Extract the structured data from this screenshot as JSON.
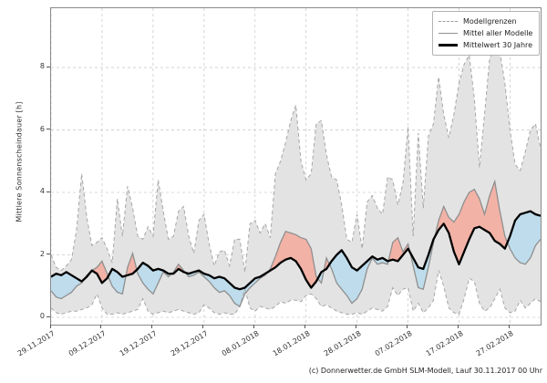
{
  "chart_data": {
    "type": "area",
    "title": "",
    "xlabel": "",
    "ylabel": "Mittlere Sonnenscheindauer [h]",
    "ylim": [
      0,
      9.9
    ],
    "y_ticks": [
      0,
      2,
      4,
      6,
      8
    ],
    "x_range_days": [
      0,
      96
    ],
    "x_ticks": [
      {
        "day": 0,
        "label": "29.11.2017"
      },
      {
        "day": 10,
        "label": "09.12.2017"
      },
      {
        "day": 20,
        "label": "19.12.2017"
      },
      {
        "day": 30,
        "label": "29.12.2017"
      },
      {
        "day": 40,
        "label": "08.01.2018"
      },
      {
        "day": 50,
        "label": "18.01.2018"
      },
      {
        "day": 60,
        "label": "28.01.2018"
      },
      {
        "day": 70,
        "label": "07.02.2018"
      },
      {
        "day": 80,
        "label": "17.02.2018"
      },
      {
        "day": 90,
        "label": "27.02.2018"
      }
    ],
    "grid": true,
    "legend_position": "top-right",
    "legend": [
      "Modellgrenzen",
      "Mittel aller Modelle",
      "Mittelwert 30 Jahre"
    ],
    "series": [
      {
        "name": "Modellgrenzen (oberes Limit)",
        "style": "dashed-bound",
        "values": [
          2.0,
          1.6,
          1.5,
          1.65,
          1.85,
          2.8,
          4.6,
          3.2,
          2.3,
          2.4,
          2.55,
          2.2,
          1.75,
          3.8,
          2.6,
          4.2,
          3.5,
          2.6,
          2.5,
          2.9,
          2.6,
          4.4,
          3.4,
          2.5,
          2.6,
          3.4,
          3.55,
          2.6,
          2.05,
          3.1,
          3.3,
          2.35,
          1.65,
          2.1,
          2.15,
          1.65,
          2.5,
          2.5,
          1.45,
          3.0,
          3.1,
          2.7,
          3.0,
          2.55,
          4.6,
          5.0,
          5.6,
          6.3,
          6.8,
          5.0,
          4.4,
          4.6,
          6.2,
          6.3,
          5.2,
          4.5,
          4.4,
          3.6,
          2.5,
          2.4,
          3.3,
          2.2,
          3.7,
          3.9,
          3.5,
          3.3,
          4.5,
          4.4,
          3.6,
          4.3,
          6.1,
          2.6,
          5.9,
          3.5,
          5.8,
          6.2,
          7.7,
          6.5,
          5.75,
          6.5,
          7.5,
          8.1,
          8.4,
          7.0,
          4.8,
          6.5,
          8.3,
          8.55,
          8.5,
          7.5,
          6.0,
          4.9,
          4.7,
          5.3,
          6.0,
          6.2,
          5.4
        ]
      },
      {
        "name": "Modellgrenzen (unteres Limit)",
        "style": "dashed-bound",
        "values": [
          0.3,
          0.15,
          0.1,
          0.15,
          0.2,
          0.2,
          0.25,
          0.3,
          0.4,
          0.75,
          0.3,
          0.1,
          0.1,
          0.15,
          0.1,
          0.15,
          0.2,
          0.25,
          0.6,
          0.2,
          0.1,
          0.15,
          0.2,
          0.15,
          0.2,
          0.25,
          0.2,
          0.15,
          0.1,
          0.15,
          0.4,
          0.3,
          0.15,
          0.1,
          0.15,
          0.1,
          0.1,
          0.35,
          0.9,
          0.3,
          0.2,
          0.35,
          0.3,
          0.25,
          0.35,
          0.5,
          0.45,
          0.55,
          0.55,
          0.5,
          0.7,
          0.75,
          0.6,
          0.35,
          0.4,
          0.3,
          0.2,
          0.15,
          0.1,
          0.1,
          0.15,
          0.1,
          0.2,
          0.3,
          0.25,
          0.2,
          0.35,
          0.95,
          0.7,
          0.9,
          0.95,
          0.2,
          0.45,
          0.15,
          0.3,
          0.55,
          1.5,
          1.0,
          0.3,
          0.15,
          0.1,
          0.6,
          1.25,
          1.15,
          0.45,
          0.2,
          0.3,
          0.6,
          0.9,
          0.3,
          0.15,
          0.2,
          0.55,
          0.3,
          0.45,
          0.6,
          0.5
        ]
      },
      {
        "name": "Mittel aller Modelle",
        "style": "gray-line",
        "values": [
          0.85,
          0.65,
          0.6,
          0.7,
          0.8,
          1.0,
          1.1,
          1.35,
          1.5,
          1.6,
          1.8,
          1.4,
          1.0,
          0.8,
          0.75,
          1.6,
          2.05,
          1.4,
          1.1,
          0.9,
          0.75,
          1.1,
          1.45,
          1.3,
          1.45,
          1.7,
          1.5,
          1.3,
          1.35,
          1.45,
          1.3,
          1.15,
          0.95,
          0.8,
          0.85,
          0.7,
          0.45,
          0.35,
          0.75,
          0.95,
          1.1,
          1.25,
          1.35,
          1.55,
          1.95,
          2.4,
          2.75,
          2.7,
          2.65,
          2.55,
          2.5,
          2.2,
          1.3,
          1.1,
          1.9,
          1.55,
          1.1,
          0.9,
          0.7,
          0.45,
          0.6,
          0.9,
          1.55,
          1.9,
          1.7,
          1.75,
          1.7,
          2.4,
          2.55,
          2.1,
          2.35,
          1.65,
          0.95,
          0.9,
          1.6,
          2.4,
          3.1,
          3.55,
          3.2,
          3.05,
          3.3,
          3.7,
          4.0,
          4.1,
          3.8,
          3.3,
          3.9,
          4.35,
          3.4,
          2.6,
          2.2,
          1.9,
          1.75,
          1.7,
          1.9,
          2.3,
          2.5
        ]
      },
      {
        "name": "Mittelwert 30 Jahre",
        "style": "black-line",
        "values": [
          1.3,
          1.4,
          1.35,
          1.45,
          1.35,
          1.25,
          1.15,
          1.3,
          1.5,
          1.4,
          1.1,
          1.25,
          1.55,
          1.45,
          1.3,
          1.35,
          1.4,
          1.55,
          1.75,
          1.65,
          1.5,
          1.55,
          1.5,
          1.4,
          1.4,
          1.55,
          1.45,
          1.4,
          1.45,
          1.5,
          1.4,
          1.35,
          1.25,
          1.3,
          1.25,
          1.1,
          0.95,
          0.9,
          0.95,
          1.1,
          1.25,
          1.3,
          1.4,
          1.5,
          1.6,
          1.75,
          1.85,
          1.9,
          1.8,
          1.55,
          1.2,
          0.95,
          1.15,
          1.45,
          1.55,
          1.8,
          2.0,
          2.15,
          1.9,
          1.6,
          1.5,
          1.65,
          1.8,
          1.95,
          1.85,
          1.9,
          1.8,
          1.85,
          1.8,
          2.0,
          2.2,
          1.9,
          1.6,
          1.55,
          2.0,
          2.5,
          2.8,
          3.0,
          2.7,
          2.1,
          1.7,
          2.1,
          2.5,
          2.85,
          2.9,
          2.8,
          2.7,
          2.45,
          2.35,
          2.2,
          2.6,
          3.1,
          3.3,
          3.35,
          3.4,
          3.3,
          3.25
        ]
      }
    ],
    "colors": {
      "band_fill": "#e3e3e3",
      "bound_line": "#a6a6a6",
      "above_mean_fill": "#f2b2a6",
      "below_mean_fill": "#bedcec",
      "model_mean_line": "#8f8f8f",
      "mean30_line": "#000000",
      "grid": "#cccccc",
      "spine": "#8a8a8a"
    }
  },
  "footer": {
    "credit": "(c) Donnerwetter.de GmbH SLM-Modell, Lauf 30.11.2017 00 Uhr"
  }
}
